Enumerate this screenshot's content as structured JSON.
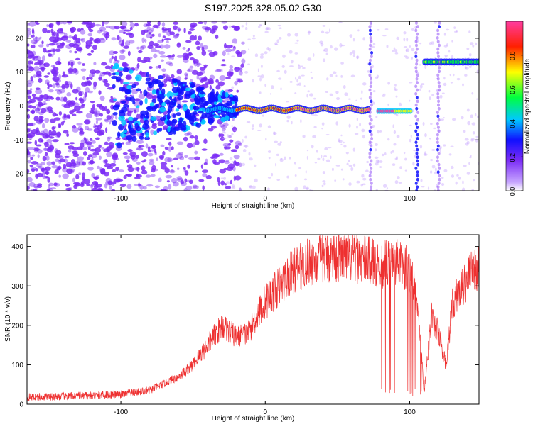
{
  "figure": {
    "title": "S197.2025.328.05.02.G30"
  },
  "chart_data": [
    {
      "type": "heatmap",
      "title": "S197.2025.328.05.02.G30",
      "xlabel": "Height of straight line (km)",
      "ylabel": "Frequency (Hz)",
      "xlim": [
        -165,
        148
      ],
      "ylim": [
        -25,
        25
      ],
      "xticks": [
        -100,
        0,
        100
      ],
      "yticks": [
        -20,
        -10,
        0,
        10,
        20
      ],
      "grid": false,
      "colorbar": {
        "label": "Normalized spectral amplitude",
        "range": [
          0,
          1
        ],
        "ticks": [
          "0.0",
          "0.2",
          "0.4",
          "0.6",
          "0.8"
        ],
        "colormap": [
          "#ffffff",
          "#7b2cf6",
          "#1010ff",
          "#00c8ff",
          "#00ff40",
          "#ffff00",
          "#ff0000",
          "#ff3ca0"
        ]
      },
      "features": {
        "noise_region_x": [
          -165,
          -30
        ],
        "dominant_line": {
          "x": [
            -20,
            72
          ],
          "y": -1,
          "peak_amplitude": 1.0
        },
        "secondary_segment": {
          "x": [
            80,
            102
          ],
          "y": -1.5
        },
        "high_frequency_segment": {
          "x": [
            110,
            148
          ],
          "y": 13
        },
        "vertical_streaks_x": [
          73,
          105,
          120
        ]
      }
    },
    {
      "type": "line",
      "xlabel": "Height of straight line (km)",
      "ylabel": "SNR (10 * v/v)",
      "xlim": [
        -165,
        148
      ],
      "ylim": [
        0,
        430
      ],
      "xticks": [
        -100,
        0,
        100
      ],
      "yticks": [
        0,
        100,
        200,
        300,
        400
      ],
      "grid": false,
      "series": [
        {
          "name": "SNR",
          "color": "#ee3030",
          "x": [
            -165,
            -140,
            -120,
            -100,
            -80,
            -60,
            -50,
            -40,
            -30,
            -20,
            -12,
            -5,
            0,
            10,
            20,
            30,
            40,
            50,
            60,
            70,
            75,
            80,
            90,
            100,
            105,
            110,
            115,
            120,
            125,
            130,
            140,
            148
          ],
          "y": [
            18,
            20,
            22,
            25,
            35,
            70,
            100,
            150,
            200,
            170,
            180,
            230,
            260,
            300,
            340,
            360,
            370,
            375,
            370,
            365,
            360,
            355,
            360,
            340,
            280,
            30,
            220,
            180,
            100,
            260,
            320,
            350
          ]
        }
      ]
    }
  ]
}
